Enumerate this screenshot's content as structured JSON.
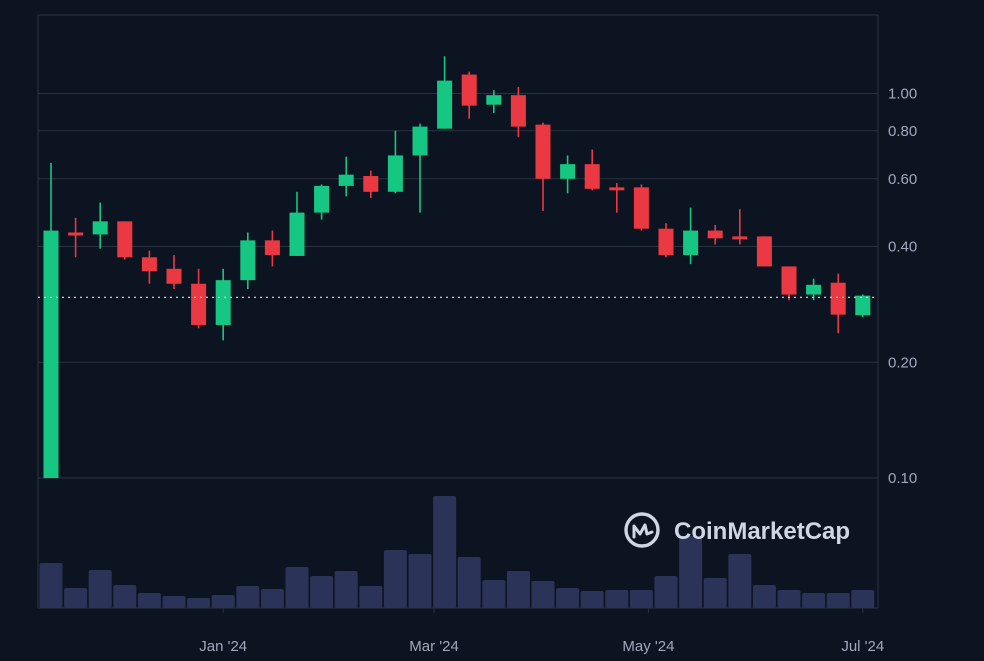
{
  "colors": {
    "background": "#0d1421",
    "up": "#16c784",
    "down": "#ea3943",
    "volume": "#2b3358",
    "grid": "#2a3241",
    "axis_text": "#a1a7bb",
    "watermark": "#cfd6e4",
    "current_price_line": "#c7ccd6"
  },
  "watermark": {
    "text": "CoinMarketCap",
    "icon": "coinmarketcap-logo-icon"
  },
  "chart_data": {
    "type": "candlestick",
    "y_scale": "log",
    "ylim": [
      0.1,
      1.6
    ],
    "yticks": [
      {
        "value": 1.0,
        "label": "1.00"
      },
      {
        "value": 0.8,
        "label": "0.80"
      },
      {
        "value": 0.6,
        "label": "0.60"
      },
      {
        "value": 0.4,
        "label": "0.40"
      },
      {
        "value": 0.2,
        "label": "0.20"
      },
      {
        "value": 0.1,
        "label": "0.10"
      }
    ],
    "xticks": [
      {
        "date": "2024-01-01",
        "label": "Jan '24"
      },
      {
        "date": "2024-03-01",
        "label": "Mar '24"
      },
      {
        "date": "2024-05-01",
        "label": "May '24"
      },
      {
        "date": "2024-07-01",
        "label": "Jul '24"
      }
    ],
    "interval": "weekly",
    "current_price": 0.295,
    "candles": [
      {
        "date": "2023-11-13",
        "open": 0.1,
        "high": 0.66,
        "low": 0.1,
        "close": 0.44,
        "volume": 45
      },
      {
        "date": "2023-11-20",
        "open": 0.435,
        "high": 0.475,
        "low": 0.375,
        "close": 0.43,
        "volume": 20
      },
      {
        "date": "2023-11-27",
        "open": 0.43,
        "high": 0.52,
        "low": 0.395,
        "close": 0.465,
        "volume": 38
      },
      {
        "date": "2023-12-04",
        "open": 0.465,
        "high": 0.465,
        "low": 0.37,
        "close": 0.375,
        "volume": 23
      },
      {
        "date": "2023-12-11",
        "open": 0.375,
        "high": 0.39,
        "low": 0.32,
        "close": 0.345,
        "volume": 15
      },
      {
        "date": "2023-12-18",
        "open": 0.35,
        "high": 0.38,
        "low": 0.31,
        "close": 0.32,
        "volume": 12
      },
      {
        "date": "2023-12-25",
        "open": 0.32,
        "high": 0.35,
        "low": 0.245,
        "close": 0.25,
        "volume": 10
      },
      {
        "date": "2024-01-01",
        "open": 0.25,
        "high": 0.35,
        "low": 0.228,
        "close": 0.327,
        "volume": 13
      },
      {
        "date": "2024-01-08",
        "open": 0.327,
        "high": 0.435,
        "low": 0.31,
        "close": 0.415,
        "volume": 22
      },
      {
        "date": "2024-01-15",
        "open": 0.415,
        "high": 0.44,
        "low": 0.355,
        "close": 0.38,
        "volume": 19
      },
      {
        "date": "2024-01-22",
        "open": 0.378,
        "high": 0.555,
        "low": 0.378,
        "close": 0.49,
        "volume": 41
      },
      {
        "date": "2024-01-29",
        "open": 0.49,
        "high": 0.58,
        "low": 0.47,
        "close": 0.575,
        "volume": 32
      },
      {
        "date": "2024-02-05",
        "open": 0.575,
        "high": 0.685,
        "low": 0.54,
        "close": 0.615,
        "volume": 37
      },
      {
        "date": "2024-02-12",
        "open": 0.61,
        "high": 0.63,
        "low": 0.535,
        "close": 0.555,
        "volume": 22
      },
      {
        "date": "2024-02-19",
        "open": 0.555,
        "high": 0.8,
        "low": 0.55,
        "close": 0.69,
        "volume": 58
      },
      {
        "date": "2024-02-26",
        "open": 0.69,
        "high": 0.835,
        "low": 0.49,
        "close": 0.82,
        "volume": 54
      },
      {
        "date": "2024-03-04",
        "open": 0.81,
        "high": 1.25,
        "low": 0.81,
        "close": 1.08,
        "volume": 112
      },
      {
        "date": "2024-03-11",
        "open": 1.12,
        "high": 1.14,
        "low": 0.86,
        "close": 0.93,
        "volume": 51
      },
      {
        "date": "2024-03-18",
        "open": 0.935,
        "high": 1.02,
        "low": 0.89,
        "close": 0.99,
        "volume": 28
      },
      {
        "date": "2024-03-25",
        "open": 0.99,
        "high": 1.04,
        "low": 0.77,
        "close": 0.82,
        "volume": 37
      },
      {
        "date": "2024-04-01",
        "open": 0.83,
        "high": 0.84,
        "low": 0.495,
        "close": 0.6,
        "volume": 27
      },
      {
        "date": "2024-04-08",
        "open": 0.6,
        "high": 0.69,
        "low": 0.55,
        "close": 0.655,
        "volume": 20
      },
      {
        "date": "2024-04-15",
        "open": 0.655,
        "high": 0.715,
        "low": 0.56,
        "close": 0.565,
        "volume": 17
      },
      {
        "date": "2024-04-22",
        "open": 0.57,
        "high": 0.585,
        "low": 0.49,
        "close": 0.56,
        "volume": 18
      },
      {
        "date": "2024-04-29",
        "open": 0.57,
        "high": 0.58,
        "low": 0.44,
        "close": 0.445,
        "volume": 18
      },
      {
        "date": "2024-05-06",
        "open": 0.445,
        "high": 0.46,
        "low": 0.375,
        "close": 0.38,
        "volume": 32
      },
      {
        "date": "2024-05-13",
        "open": 0.38,
        "high": 0.505,
        "low": 0.36,
        "close": 0.44,
        "volume": 72
      },
      {
        "date": "2024-05-20",
        "open": 0.44,
        "high": 0.455,
        "low": 0.405,
        "close": 0.42,
        "volume": 30
      },
      {
        "date": "2024-05-27",
        "open": 0.425,
        "high": 0.5,
        "low": 0.405,
        "close": 0.42,
        "volume": 54
      },
      {
        "date": "2024-06-03",
        "open": 0.425,
        "high": 0.425,
        "low": 0.355,
        "close": 0.355,
        "volume": 23
      },
      {
        "date": "2024-06-10",
        "open": 0.355,
        "high": 0.355,
        "low": 0.29,
        "close": 0.3,
        "volume": 18
      },
      {
        "date": "2024-06-17",
        "open": 0.3,
        "high": 0.33,
        "low": 0.29,
        "close": 0.318,
        "volume": 15
      },
      {
        "date": "2024-06-24",
        "open": 0.322,
        "high": 0.34,
        "low": 0.238,
        "close": 0.266,
        "volume": 15
      },
      {
        "date": "2024-07-01",
        "open": 0.265,
        "high": 0.3,
        "low": 0.262,
        "close": 0.298,
        "volume": 18
      }
    ]
  }
}
